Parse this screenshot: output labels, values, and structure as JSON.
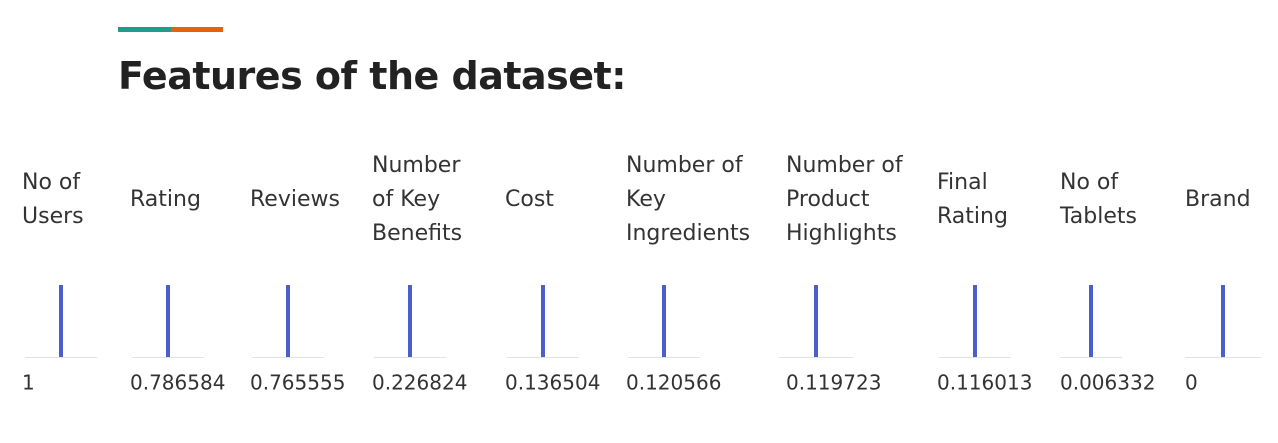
{
  "page": {
    "title": "Features of the dataset:",
    "accent_colors": [
      "#1f9c8c",
      "#e4610f"
    ]
  },
  "chart_data": {
    "type": "bar",
    "categories": [
      [
        "No of",
        "Users"
      ],
      [
        "Rating"
      ],
      [
        "Reviews"
      ],
      [
        "Number",
        "of Key",
        "Benefits"
      ],
      [
        "Cost"
      ],
      [
        "Number of",
        "Key",
        "Ingredients"
      ],
      [
        "Number of",
        "Product",
        "Highlights"
      ],
      [
        "Final",
        "Rating"
      ],
      [
        "No of",
        "Tablets"
      ],
      [
        "Brand"
      ]
    ],
    "values": [
      1,
      0.786584,
      0.765555,
      0.226824,
      0.136504,
      0.120566,
      0.119723,
      0.116013,
      0.006332,
      0
    ],
    "value_labels": [
      "1",
      "0.786584",
      "0.765555",
      "0.226824",
      "0.136504",
      "0.120566",
      "0.119723",
      "0.116013",
      "0.006332",
      "0"
    ],
    "bar_color": "#4a5fcc",
    "baseline_color": "#e2e2e2",
    "grid": false,
    "legend": "none"
  }
}
